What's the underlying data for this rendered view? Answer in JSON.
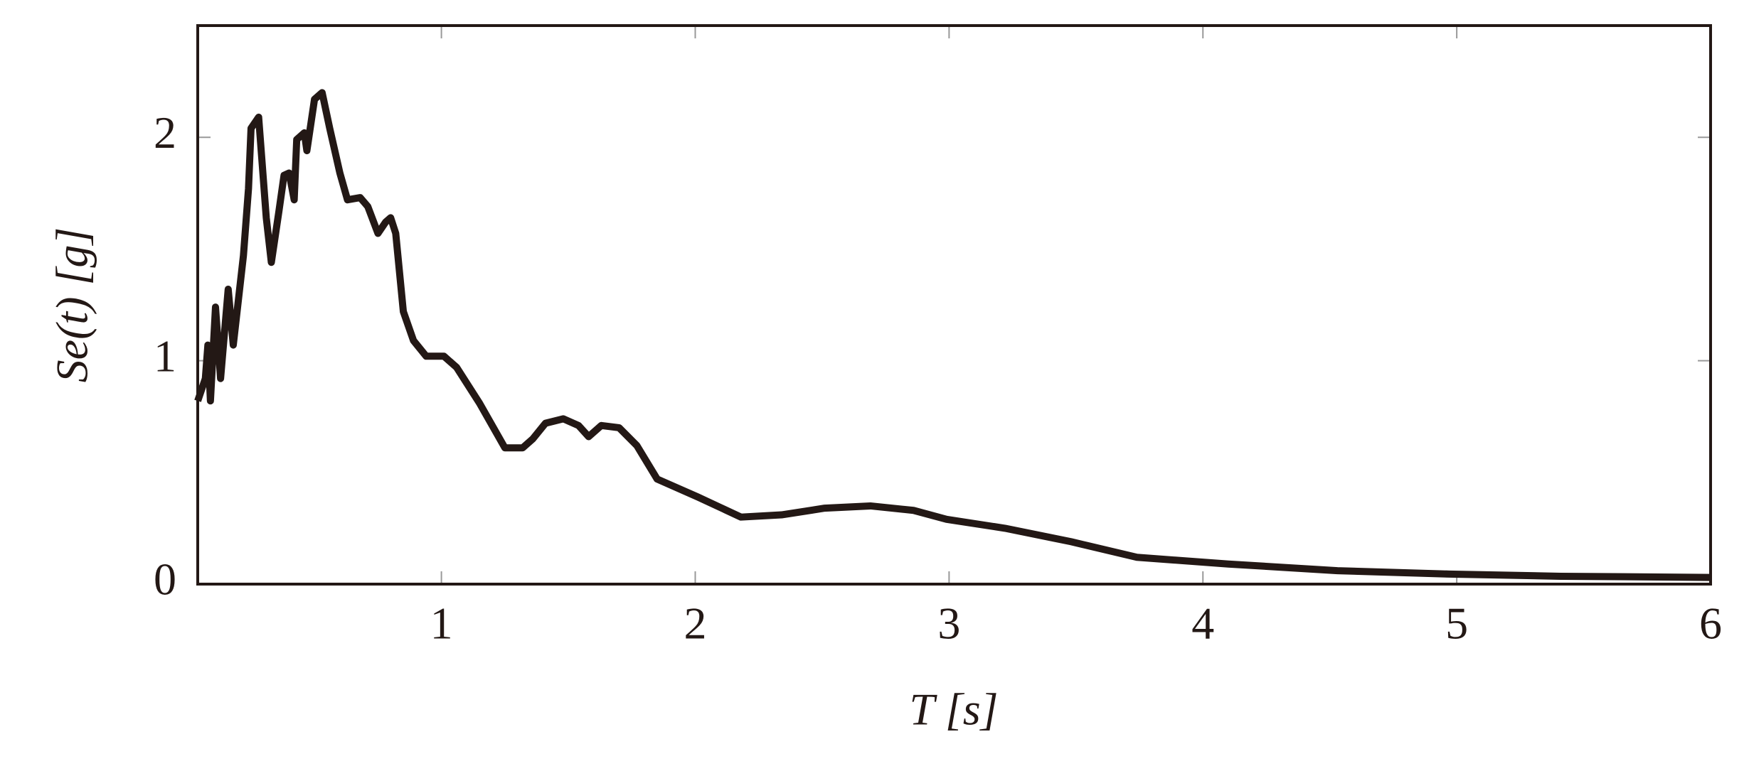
{
  "chart_data": {
    "type": "line",
    "x_label": "T [s]",
    "y_label": "Se(t) [g]",
    "x": [
      0.04,
      0.07,
      0.08,
      0.09,
      0.11,
      0.13,
      0.16,
      0.18,
      0.22,
      0.24,
      0.25,
      0.28,
      0.31,
      0.33,
      0.36,
      0.38,
      0.4,
      0.42,
      0.43,
      0.46,
      0.47,
      0.5,
      0.53,
      0.56,
      0.6,
      0.63,
      0.68,
      0.71,
      0.75,
      0.78,
      0.8,
      0.82,
      0.85,
      0.89,
      0.94,
      1.01,
      1.06,
      1.15,
      1.25,
      1.32,
      1.36,
      1.41,
      1.48,
      1.54,
      1.58,
      1.63,
      1.7,
      1.77,
      1.85,
      2.01,
      2.18,
      2.34,
      2.51,
      2.69,
      2.86,
      2.99,
      3.22,
      3.48,
      3.74,
      4.1,
      4.53,
      4.97,
      5.41,
      6
    ],
    "series": [
      {
        "color": "#231815",
        "values": [
          0.82,
          0.92,
          1.07,
          0.82,
          1.24,
          0.92,
          1.32,
          1.07,
          1.47,
          1.77,
          2.04,
          2.09,
          1.64,
          1.44,
          1.67,
          1.83,
          1.84,
          1.72,
          1.99,
          2.02,
          1.94,
          2.17,
          2.2,
          2.04,
          1.84,
          1.72,
          1.73,
          1.69,
          1.57,
          1.62,
          1.64,
          1.57,
          1.22,
          1.09,
          1.02,
          1.02,
          0.97,
          0.81,
          0.61,
          0.61,
          0.65,
          0.72,
          0.74,
          0.71,
          0.66,
          0.71,
          0.7,
          0.62,
          0.47,
          0.39,
          0.3,
          0.31,
          0.34,
          0.35,
          0.33,
          0.29,
          0.25,
          0.19,
          0.12,
          0.09,
          0.06,
          0.045,
          0.035,
          0.03
        ]
      }
    ],
    "xlim": [
      0.04,
      6
    ],
    "ylim": [
      0,
      2.5
    ],
    "xticks": [
      1,
      2,
      3,
      4,
      5,
      6
    ],
    "yticks": [
      0,
      1,
      2
    ]
  }
}
